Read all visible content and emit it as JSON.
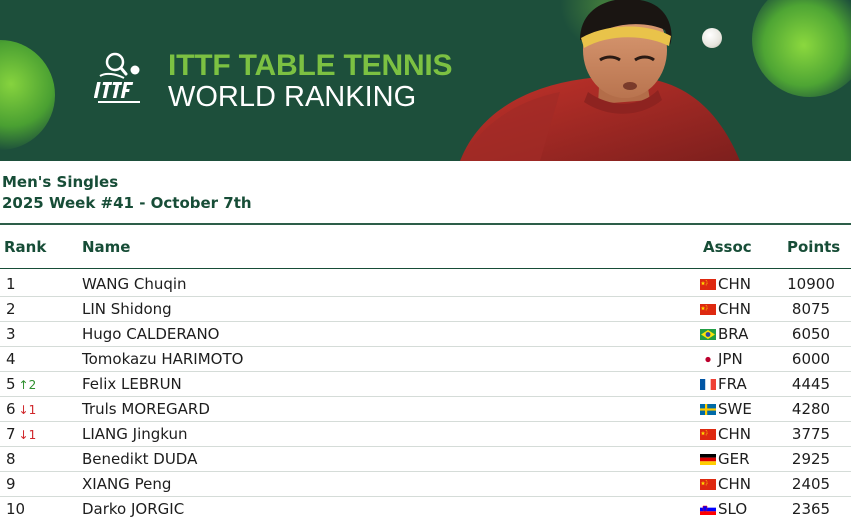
{
  "banner": {
    "title_line1": "ITTF TABLE TENNIS",
    "title_line2": "WORLD RANKING",
    "logo_text": "ITTF",
    "colors": {
      "background": "#1d4f3b",
      "accent": "#7cc142",
      "text": "#ffffff"
    }
  },
  "category": "Men's Singles",
  "week": "2025 Week #41 - October 7th",
  "table": {
    "headers": {
      "rank": "Rank",
      "name": "Name",
      "assoc": "Assoc",
      "points": "Points"
    },
    "rows": [
      {
        "rank": "1",
        "move": "",
        "move_dir": "",
        "name": "WANG Chuqin",
        "flag": "chn",
        "assoc": "CHN",
        "points": "10900"
      },
      {
        "rank": "2",
        "move": "",
        "move_dir": "",
        "name": "LIN Shidong",
        "flag": "chn",
        "assoc": "CHN",
        "points": "8075"
      },
      {
        "rank": "3",
        "move": "",
        "move_dir": "",
        "name": "Hugo CALDERANO",
        "flag": "bra",
        "assoc": "BRA",
        "points": "6050"
      },
      {
        "rank": "4",
        "move": "",
        "move_dir": "",
        "name": "Tomokazu HARIMOTO",
        "flag": "jpn",
        "assoc": "JPN",
        "points": "6000"
      },
      {
        "rank": "5",
        "move": "↑2",
        "move_dir": "up",
        "name": "Felix LEBRUN",
        "flag": "fra",
        "assoc": "FRA",
        "points": "4445"
      },
      {
        "rank": "6",
        "move": "↓1",
        "move_dir": "down",
        "name": "Truls MOREGARD",
        "flag": "swe",
        "assoc": "SWE",
        "points": "4280"
      },
      {
        "rank": "7",
        "move": "↓1",
        "move_dir": "down",
        "name": "LIANG Jingkun",
        "flag": "chn",
        "assoc": "CHN",
        "points": "3775"
      },
      {
        "rank": "8",
        "move": "",
        "move_dir": "",
        "name": "Benedikt DUDA",
        "flag": "ger",
        "assoc": "GER",
        "points": "2925"
      },
      {
        "rank": "9",
        "move": "",
        "move_dir": "",
        "name": "XIANG Peng",
        "flag": "chn",
        "assoc": "CHN",
        "points": "2405"
      },
      {
        "rank": "10",
        "move": "",
        "move_dir": "",
        "name": "Darko JORGIC",
        "flag": "slo",
        "assoc": "SLO",
        "points": "2365"
      }
    ]
  }
}
